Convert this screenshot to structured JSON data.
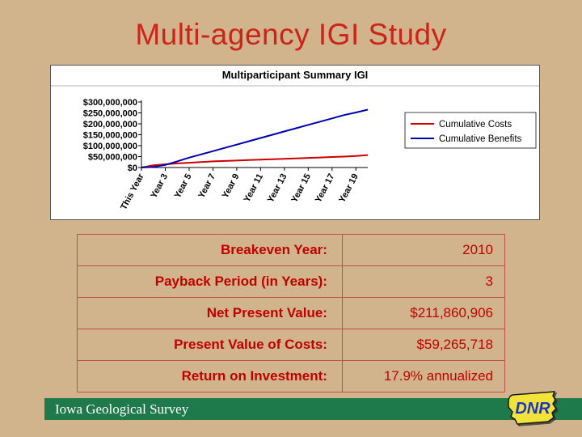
{
  "slide": {
    "title": "Multi-agency IGI Study",
    "footer": "Iowa Geological Survey",
    "logo_text": "DNR"
  },
  "chart_data": {
    "type": "line",
    "title": "Multiparticipant Summary IGI",
    "x_tick_labels": [
      "This Year",
      "Year 3",
      "Year 5",
      "Year 7",
      "Year 9",
      "Year 11",
      "Year 13",
      "Year 15",
      "Year 17",
      "Year 19"
    ],
    "y_tick_labels": [
      "$300,000,000",
      "$250,000,000",
      "$200,000,000",
      "$150,000,000",
      "$100,000,000",
      "$50,000,000",
      "$0"
    ],
    "ylim": [
      0,
      300000000
    ],
    "grid": false,
    "legend_position": "right",
    "series": [
      {
        "name": "Cumulative Costs",
        "color": "#cc0000",
        "values": [
          0,
          10000000,
          15000000,
          19000000,
          22000000,
          25000000,
          28000000,
          30000000,
          32000000,
          34000000,
          36000000,
          38000000,
          40000000,
          42000000,
          44000000,
          46000000,
          48000000,
          50000000,
          53000000,
          57000000
        ]
      },
      {
        "name": "Cumulative Benefits",
        "color": "#0000b3",
        "values": [
          0,
          3000000,
          12000000,
          28000000,
          45000000,
          60000000,
          75000000,
          90000000,
          105000000,
          120000000,
          135000000,
          150000000,
          165000000,
          180000000,
          195000000,
          210000000,
          225000000,
          240000000,
          252000000,
          265000000
        ]
      }
    ]
  },
  "table": {
    "rows": [
      {
        "label": "Breakeven Year:",
        "value": "2010"
      },
      {
        "label": "Payback Period (in Years):",
        "value": "3"
      },
      {
        "label": "Net Present Value:",
        "value": "$211,860,906"
      },
      {
        "label": "Present Value of Costs:",
        "value": "$59,265,718"
      },
      {
        "label": "Return on Investment:",
        "value": "17.9% annualized"
      }
    ]
  },
  "colors": {
    "background": "#d2b48c",
    "title_red": "#cc2418",
    "table_text": "#c00000",
    "table_border": "#c0504d",
    "footer_green": "#1e7a4a",
    "costs_line": "#cc0000",
    "benefits_line": "#0000b3",
    "logo_yellow": "#f2e33a",
    "logo_blue": "#1d35c4"
  }
}
